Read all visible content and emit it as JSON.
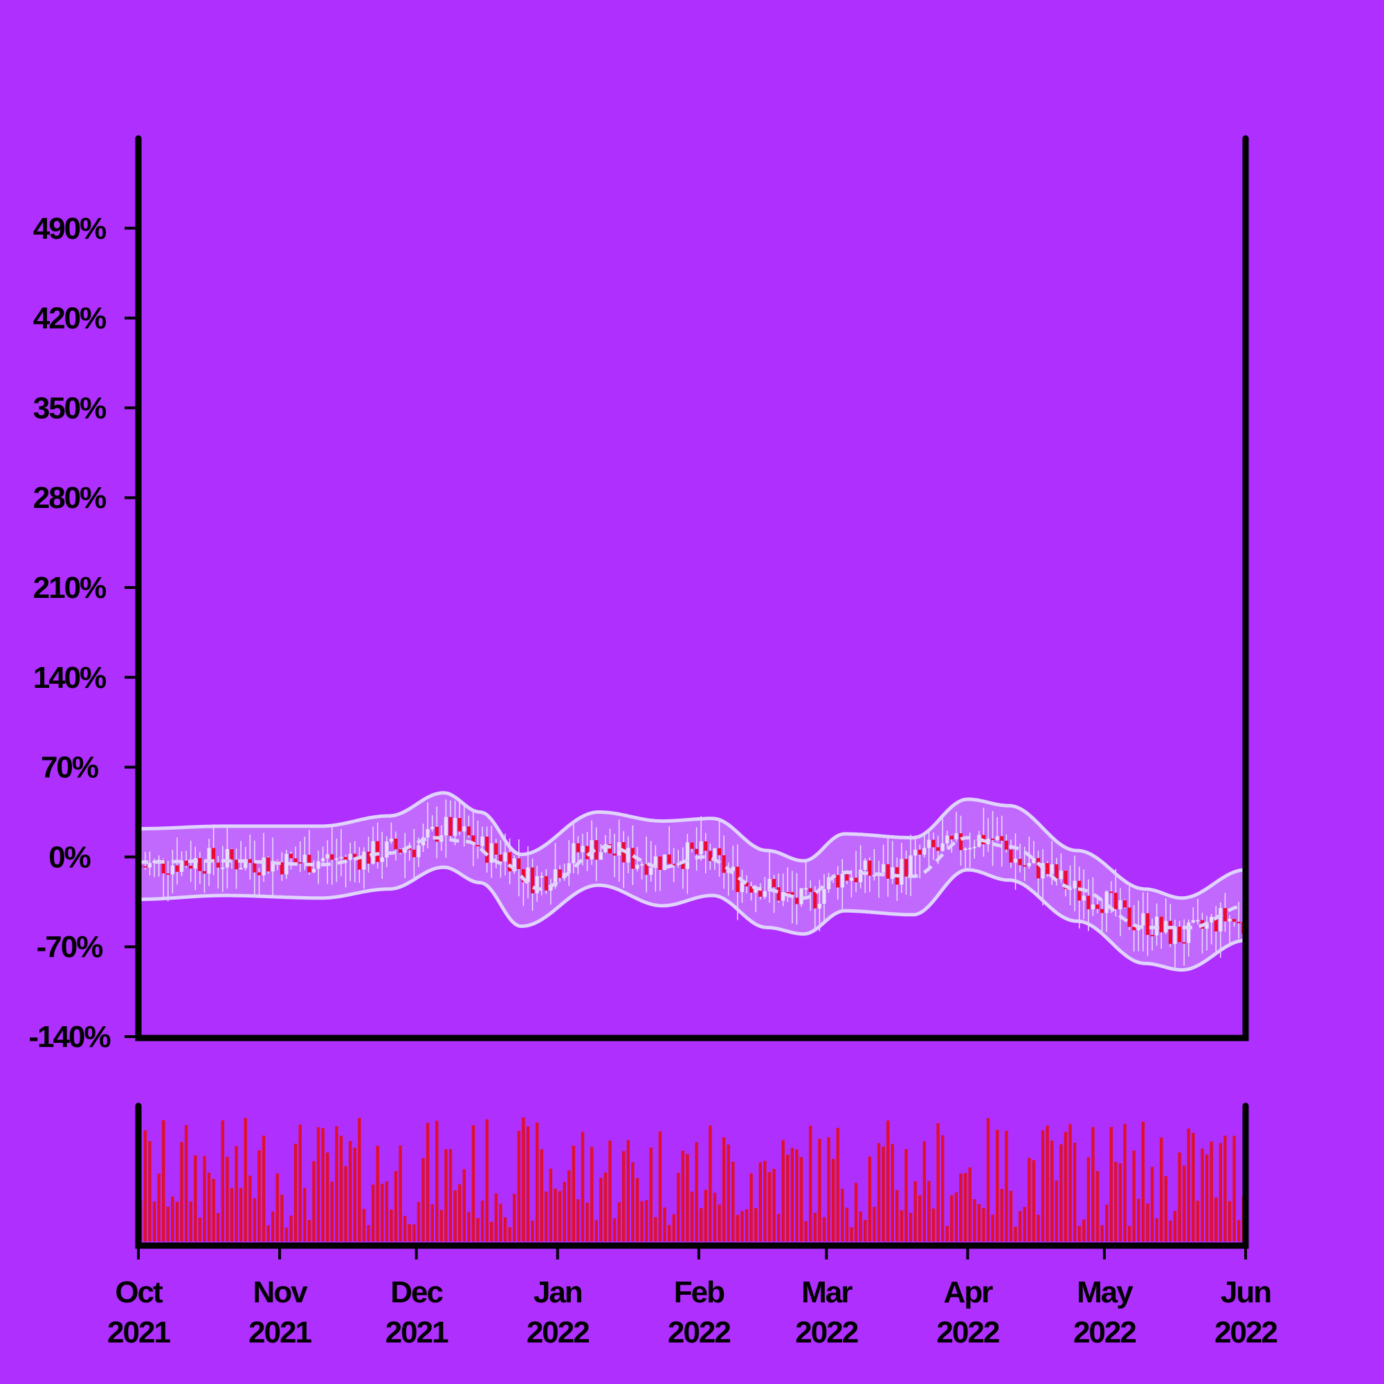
{
  "colors": {
    "background": "#ae2ffe",
    "axes": "#000000",
    "candle_up": "#e8e0ff",
    "candle_down": "#ee0a2a",
    "wick": "#e8e0ff",
    "band_line": "#e0d4ff",
    "band_fill": "#c77dfc",
    "volume": "#e0102a"
  },
  "chart_data": {
    "type": "candlestick",
    "title": "",
    "xlabel": "",
    "ylabel": "",
    "x_range": [
      "2021-10-01",
      "2022-06-01"
    ],
    "ylim": [
      -140,
      560
    ],
    "y_unit": "%",
    "y_ticks": [
      "490%",
      "420%",
      "350%",
      "280%",
      "210%",
      "140%",
      "70%",
      "0%",
      "-70%",
      "-140%"
    ],
    "y_tick_values": [
      490,
      420,
      350,
      280,
      210,
      140,
      70,
      0,
      -70,
      -140
    ],
    "x_ticks": [
      {
        "month": "Oct",
        "year": "2021",
        "date": "2021-10-01"
      },
      {
        "month": "Nov",
        "year": "2021",
        "date": "2021-11-01"
      },
      {
        "month": "Dec",
        "year": "2021",
        "date": "2021-12-01"
      },
      {
        "month": "Jan",
        "year": "2022",
        "date": "2022-01-01"
      },
      {
        "month": "Feb",
        "year": "2022",
        "date": "2022-02-01"
      },
      {
        "month": "Mar",
        "year": "2022",
        "date": "2022-03-01"
      },
      {
        "month": "Apr",
        "year": "2022",
        "date": "2022-04-01"
      },
      {
        "month": "May",
        "year": "2022",
        "date": "2022-05-01"
      },
      {
        "month": "Jun",
        "year": "2022",
        "date": "2022-06-01"
      }
    ],
    "close_trend": [
      {
        "date": "2021-10-01",
        "value": -7
      },
      {
        "date": "2021-10-15",
        "value": -3
      },
      {
        "date": "2021-11-01",
        "value": -4
      },
      {
        "date": "2021-11-15",
        "value": -1
      },
      {
        "date": "2021-12-01",
        "value": 8
      },
      {
        "date": "2021-12-07",
        "value": 22
      },
      {
        "date": "2021-12-20",
        "value": 2
      },
      {
        "date": "2021-12-27",
        "value": -18
      },
      {
        "date": "2022-01-08",
        "value": 7
      },
      {
        "date": "2022-01-20",
        "value": -3
      },
      {
        "date": "2022-02-01",
        "value": 2
      },
      {
        "date": "2022-02-12",
        "value": -20
      },
      {
        "date": "2022-02-24",
        "value": -35
      },
      {
        "date": "2022-03-05",
        "value": -14
      },
      {
        "date": "2022-03-15",
        "value": -12
      },
      {
        "date": "2022-03-25",
        "value": 5
      },
      {
        "date": "2022-04-05",
        "value": 15
      },
      {
        "date": "2022-04-15",
        "value": -8
      },
      {
        "date": "2022-04-28",
        "value": -30
      },
      {
        "date": "2022-05-08",
        "value": -50
      },
      {
        "date": "2022-05-18",
        "value": -62
      },
      {
        "date": "2022-05-28",
        "value": -48
      },
      {
        "date": "2022-06-01",
        "value": -55
      }
    ],
    "bollinger": {
      "middle": [
        {
          "date": "2021-10-01",
          "value": -4
        },
        {
          "date": "2021-10-20",
          "value": -3
        },
        {
          "date": "2021-11-10",
          "value": -6
        },
        {
          "date": "2021-11-25",
          "value": 3
        },
        {
          "date": "2021-12-05",
          "value": 15
        },
        {
          "date": "2021-12-12",
          "value": 12
        },
        {
          "date": "2021-12-20",
          "value": -5
        },
        {
          "date": "2021-12-28",
          "value": -25
        },
        {
          "date": "2022-01-12",
          "value": 8
        },
        {
          "date": "2022-01-24",
          "value": -8
        },
        {
          "date": "2022-02-02",
          "value": 0
        },
        {
          "date": "2022-02-15",
          "value": -25
        },
        {
          "date": "2022-02-24",
          "value": -32
        },
        {
          "date": "2022-03-05",
          "value": -12
        },
        {
          "date": "2022-03-20",
          "value": -15
        },
        {
          "date": "2022-04-01",
          "value": 15
        },
        {
          "date": "2022-04-10",
          "value": 8
        },
        {
          "date": "2022-04-25",
          "value": -25
        },
        {
          "date": "2022-05-10",
          "value": -55
        },
        {
          "date": "2022-05-20",
          "value": -55
        },
        {
          "date": "2022-06-01",
          "value": -38
        }
      ],
      "upper": [
        {
          "date": "2021-10-01",
          "value": 22
        },
        {
          "date": "2021-10-20",
          "value": 24
        },
        {
          "date": "2021-11-10",
          "value": 24
        },
        {
          "date": "2021-11-25",
          "value": 32
        },
        {
          "date": "2021-12-07",
          "value": 50
        },
        {
          "date": "2021-12-15",
          "value": 35
        },
        {
          "date": "2021-12-24",
          "value": 2
        },
        {
          "date": "2022-01-10",
          "value": 35
        },
        {
          "date": "2022-01-24",
          "value": 28
        },
        {
          "date": "2022-02-04",
          "value": 30
        },
        {
          "date": "2022-02-16",
          "value": 5
        },
        {
          "date": "2022-02-24",
          "value": -3
        },
        {
          "date": "2022-03-05",
          "value": 18
        },
        {
          "date": "2022-03-20",
          "value": 15
        },
        {
          "date": "2022-04-01",
          "value": 45
        },
        {
          "date": "2022-04-10",
          "value": 40
        },
        {
          "date": "2022-04-25",
          "value": 5
        },
        {
          "date": "2022-05-10",
          "value": -25
        },
        {
          "date": "2022-05-18",
          "value": -32
        },
        {
          "date": "2022-06-01",
          "value": -10
        }
      ],
      "lower": [
        {
          "date": "2021-10-01",
          "value": -33
        },
        {
          "date": "2021-10-20",
          "value": -30
        },
        {
          "date": "2021-11-10",
          "value": -32
        },
        {
          "date": "2021-11-25",
          "value": -25
        },
        {
          "date": "2021-12-07",
          "value": -8
        },
        {
          "date": "2021-12-15",
          "value": -20
        },
        {
          "date": "2021-12-24",
          "value": -54
        },
        {
          "date": "2022-01-10",
          "value": -22
        },
        {
          "date": "2022-01-24",
          "value": -38
        },
        {
          "date": "2022-02-04",
          "value": -30
        },
        {
          "date": "2022-02-16",
          "value": -55
        },
        {
          "date": "2022-02-24",
          "value": -60
        },
        {
          "date": "2022-03-05",
          "value": -42
        },
        {
          "date": "2022-03-20",
          "value": -45
        },
        {
          "date": "2022-04-01",
          "value": -10
        },
        {
          "date": "2022-04-10",
          "value": -18
        },
        {
          "date": "2022-04-25",
          "value": -50
        },
        {
          "date": "2022-05-10",
          "value": -83
        },
        {
          "date": "2022-05-18",
          "value": -88
        },
        {
          "date": "2022-06-01",
          "value": -65
        }
      ]
    },
    "volume_panel": {
      "type": "bar",
      "label": ""
    },
    "grid": false,
    "legend": "none"
  }
}
